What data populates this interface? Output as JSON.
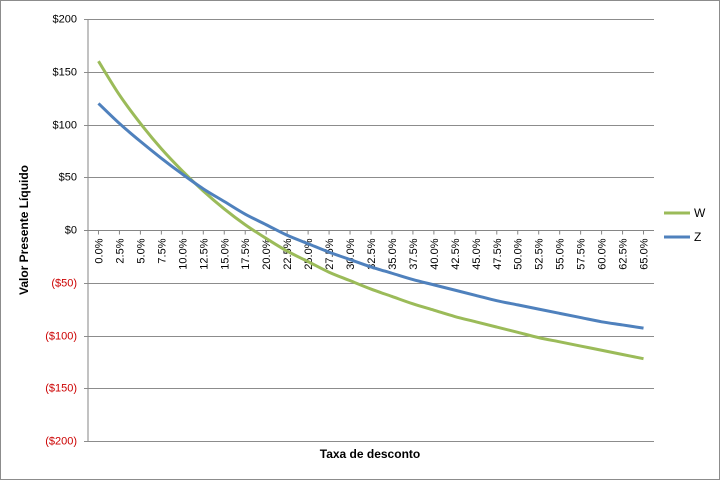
{
  "chart_data": {
    "type": "line",
    "title": "",
    "xlabel": "Taxa de desconto",
    "ylabel": "Valor Presente Líquido",
    "x": [
      0,
      2.5,
      5,
      7.5,
      10,
      12.5,
      15,
      17.5,
      20,
      22.5,
      25,
      27.5,
      30,
      32.5,
      35,
      37.5,
      40,
      42.5,
      45,
      47.5,
      50,
      52.5,
      55,
      57.5,
      60,
      62.5,
      65
    ],
    "x_tick_labels": [
      "0.0%",
      "2.5%",
      "5.0%",
      "7.5%",
      "10.0%",
      "12.5%",
      "15.0%",
      "17.5%",
      "20.0%",
      "22.5%",
      "25.0%",
      "27.5%",
      "30.0%",
      "32.5%",
      "35.0%",
      "37.5%",
      "40.0%",
      "42.5%",
      "45.0%",
      "47.5%",
      "50.0%",
      "52.5%",
      "55.0%",
      "57.5%",
      "60.0%",
      "62.5%",
      "65.0%"
    ],
    "ylim": [
      -200,
      200
    ],
    "y_ticks": [
      200,
      150,
      100,
      50,
      0,
      -50,
      -100,
      -150,
      -200
    ],
    "y_tick_labels": [
      "$200",
      "$150",
      "$100",
      "$50",
      "$0",
      "($50)",
      "($100)",
      "($150)",
      "($200)"
    ],
    "negative_label_color": "#cc0000",
    "positive_label_color": "#000000",
    "grid": true,
    "legend_position": "right",
    "series": [
      {
        "name": "W",
        "color": "#9bbb59",
        "values": [
          160,
          128,
          101,
          77,
          56,
          37,
          20,
          5,
          -8,
          -20,
          -30,
          -40,
          -48,
          -56,
          -63,
          -70,
          -76,
          -82,
          -87,
          -92,
          -97,
          -102,
          -106,
          -110,
          -114,
          -118,
          -122
        ]
      },
      {
        "name": "Z",
        "color": "#4f81bd",
        "values": [
          120,
          101,
          84,
          68,
          53,
          39,
          27,
          15,
          5,
          -5,
          -13,
          -21,
          -28,
          -35,
          -41,
          -47,
          -52,
          -57,
          -62,
          -67,
          -71,
          -75,
          -79,
          -83,
          -87,
          -90,
          -93
        ]
      }
    ]
  }
}
